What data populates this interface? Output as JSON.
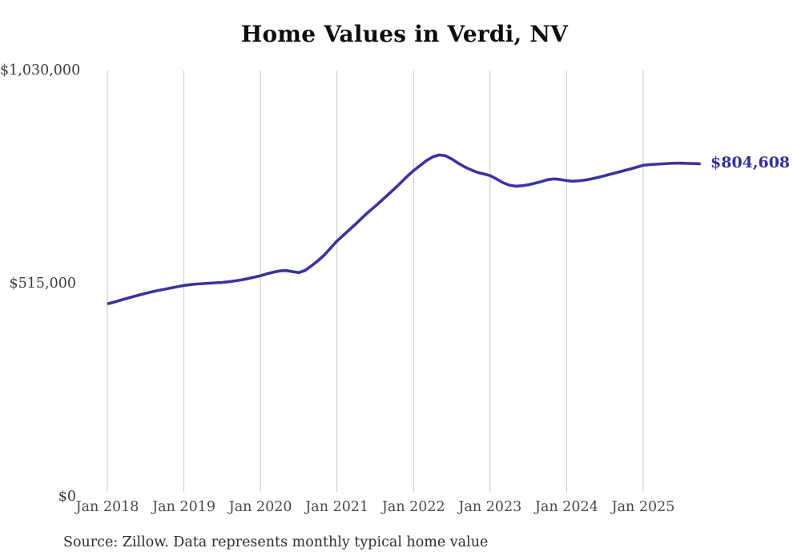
{
  "title": "Home Values in Verdi, NV",
  "source_note": "Source: Zillow. Data represents monthly typical home value",
  "end_label": "$804,608",
  "colors": {
    "line": "#3834a0",
    "grid": "#c9c9c9",
    "title_text": "#0d0d0d",
    "axis_text": "#4a4a4a",
    "end_label_text": "#332e9e",
    "source_text": "#2e2e2e",
    "background": "#ffffff"
  },
  "chart_data": {
    "type": "line",
    "title": "Home Values in Verdi, NV",
    "xlabel": "",
    "ylabel": "",
    "ylim": [
      0,
      1030000
    ],
    "grid": "vertical-only",
    "legend_position": "none",
    "x_tick_labels": [
      "Jan 2018",
      "Jan 2019",
      "Jan 2020",
      "Jan 2021",
      "Jan 2022",
      "Jan 2023",
      "Jan 2024",
      "Jan 2025"
    ],
    "y_ticks": [
      {
        "label": "$1,030,000",
        "value": 1030000
      },
      {
        "label": "$515,000",
        "value": 515000
      },
      {
        "label": "$0",
        "value": 0
      }
    ],
    "last_point": {
      "month": "2025-10",
      "value": 804608,
      "label": "$804,608"
    },
    "series": [
      {
        "name": "Typical home value",
        "color": "#3834a0",
        "months": [
          "2018-01",
          "2018-02",
          "2018-03",
          "2018-04",
          "2018-05",
          "2018-06",
          "2018-07",
          "2018-08",
          "2018-09",
          "2018-10",
          "2018-11",
          "2018-12",
          "2019-01",
          "2019-02",
          "2019-03",
          "2019-04",
          "2019-05",
          "2019-06",
          "2019-07",
          "2019-08",
          "2019-09",
          "2019-10",
          "2019-11",
          "2019-12",
          "2020-01",
          "2020-02",
          "2020-03",
          "2020-04",
          "2020-05",
          "2020-06",
          "2020-07",
          "2020-08",
          "2020-09",
          "2020-10",
          "2020-11",
          "2020-12",
          "2021-01",
          "2021-02",
          "2021-03",
          "2021-04",
          "2021-05",
          "2021-06",
          "2021-07",
          "2021-08",
          "2021-09",
          "2021-10",
          "2021-11",
          "2021-12",
          "2022-01",
          "2022-02",
          "2022-03",
          "2022-04",
          "2022-05",
          "2022-06",
          "2022-07",
          "2022-08",
          "2022-09",
          "2022-10",
          "2022-11",
          "2022-12",
          "2023-01",
          "2023-02",
          "2023-03",
          "2023-04",
          "2023-05",
          "2023-06",
          "2023-07",
          "2023-08",
          "2023-09",
          "2023-10",
          "2023-11",
          "2023-12",
          "2024-01",
          "2024-02",
          "2024-03",
          "2024-04",
          "2024-05",
          "2024-06",
          "2024-07",
          "2024-08",
          "2024-09",
          "2024-10",
          "2024-11",
          "2024-12",
          "2025-01",
          "2025-02",
          "2025-03",
          "2025-04",
          "2025-05",
          "2025-06",
          "2025-07",
          "2025-08",
          "2025-09",
          "2025-10"
        ],
        "values": [
          466000,
          470000,
          474500,
          479000,
          483500,
          487500,
          491500,
          495000,
          498500,
          501500,
          504500,
          507500,
          510500,
          512500,
          514000,
          515000,
          516000,
          517000,
          518000,
          519500,
          521500,
          524000,
          527000,
          530500,
          534000,
          538500,
          542500,
          545500,
          546500,
          544000,
          541500,
          547000,
          558000,
          570000,
          584000,
          601000,
          618000,
          632000,
          646000,
          660000,
          675000,
          689000,
          702000,
          716000,
          730000,
          744000,
          759000,
          774000,
          788000,
          800000,
          812000,
          821000,
          826000,
          824000,
          816000,
          806000,
          797000,
          790000,
          784000,
          780000,
          776000,
          768000,
          759000,
          753000,
          750500,
          751500,
          754000,
          757500,
          761500,
          766000,
          768000,
          766500,
          764000,
          762500,
          763500,
          765500,
          768500,
          772000,
          776000,
          780000,
          784000,
          788000,
          792000,
          796500,
          801000,
          802500,
          803500,
          804500,
          805500,
          806000,
          806000,
          805500,
          805000,
          804608
        ]
      }
    ],
    "layout": {
      "plot_x_first_tick": 134,
      "plot_x_last_tick": 803,
      "plot_y_zero": 620,
      "plot_y_max": 88,
      "gridline_bottom": 614
    }
  }
}
